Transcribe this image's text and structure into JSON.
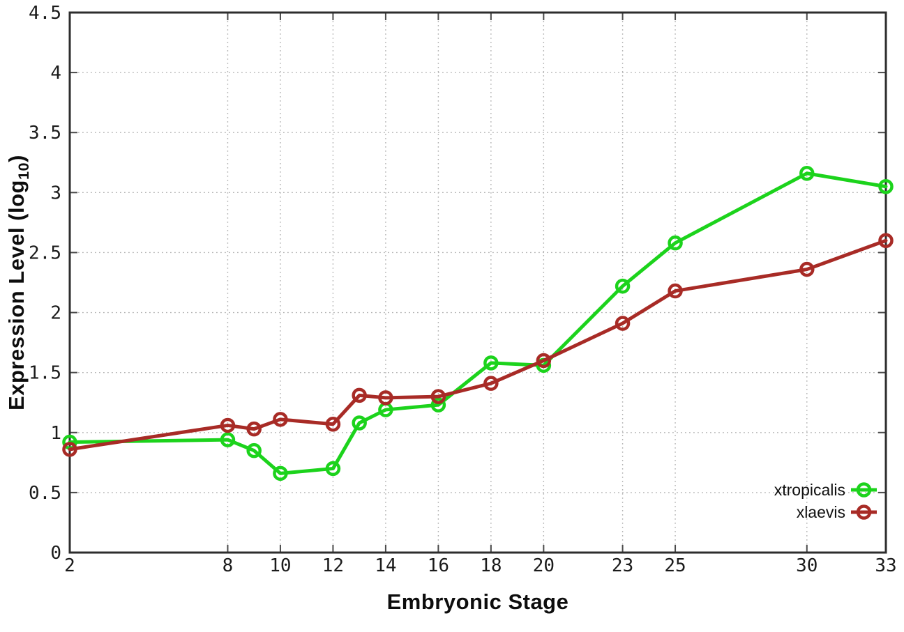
{
  "chart_data": {
    "type": "line",
    "title": "",
    "xlabel": "Embryonic Stage",
    "ylabel": "Expression Level (log10)",
    "ylabel_parts": {
      "prefix": "Expression Level (log",
      "sub": "10",
      "suffix": ")"
    },
    "xlim": [
      2,
      33
    ],
    "ylim": [
      0,
      4.5
    ],
    "grid": true,
    "legend_position": "bottom-right-inside",
    "x": [
      2,
      8,
      9,
      10,
      12,
      13,
      14,
      16,
      18,
      20,
      23,
      25,
      30,
      33
    ],
    "x_ticks": [
      "2",
      "8",
      "10",
      "12",
      "14",
      "16",
      "18",
      "20",
      "23",
      "25",
      "30",
      "33"
    ],
    "x_tick_values": [
      2,
      8,
      10,
      12,
      14,
      16,
      18,
      20,
      23,
      25,
      30,
      33
    ],
    "y_ticks": [
      "0",
      "0.5",
      "1",
      "1.5",
      "2",
      "2.5",
      "3",
      "3.5",
      "4",
      "4.5"
    ],
    "y_tick_values": [
      0,
      0.5,
      1,
      1.5,
      2,
      2.5,
      3,
      3.5,
      4,
      4.5
    ],
    "series": [
      {
        "name": "xtropicalis",
        "color": "#1cd31c",
        "marker": "open-circle",
        "values": [
          0.92,
          0.94,
          0.85,
          0.66,
          0.7,
          1.08,
          1.19,
          1.23,
          1.58,
          1.56,
          2.22,
          2.58,
          3.16,
          3.05
        ]
      },
      {
        "name": "xlaevis",
        "color": "#a82b26",
        "marker": "open-circle",
        "values": [
          0.86,
          1.06,
          1.03,
          1.11,
          1.07,
          1.31,
          1.29,
          1.3,
          1.41,
          1.6,
          1.91,
          2.18,
          2.36,
          2.6
        ]
      }
    ]
  }
}
